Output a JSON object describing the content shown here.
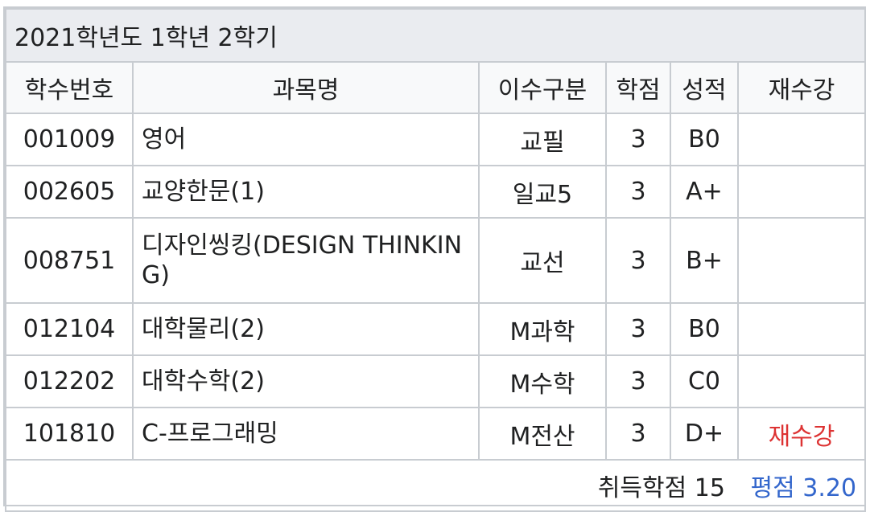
{
  "title": "2021학년도 1학년 2학기",
  "columns": [
    "학수번호",
    "과목명",
    "이수구분",
    "학점",
    "성적",
    "재수강"
  ],
  "rows": [
    {
      "code": "001009",
      "name": "영어",
      "category": "교필",
      "credits": "3",
      "grade": "B0",
      "retake": ""
    },
    {
      "code": "002605",
      "name": "교양한문(1)",
      "category": "일교5",
      "credits": "3",
      "grade": "A+",
      "retake": ""
    },
    {
      "code": "008751",
      "name": "디자인씽킹(DESIGN THINKING)",
      "category": "교선",
      "credits": "3",
      "grade": "B+",
      "retake": ""
    },
    {
      "code": "012104",
      "name": "대학물리(2)",
      "category": "M과학",
      "credits": "3",
      "grade": "B0",
      "retake": ""
    },
    {
      "code": "012202",
      "name": "대학수학(2)",
      "category": "M수학",
      "credits": "3",
      "grade": "C0",
      "retake": ""
    },
    {
      "code": "101810",
      "name": "C-프로그래밍",
      "category": "M전산",
      "credits": "3",
      "grade": "D+",
      "retake": "재수강"
    }
  ],
  "summary": {
    "earned_credits": "취득학점 15",
    "gpa": "평점 3.20"
  },
  "colors": {
    "retake": "#dd3333",
    "gpa": "#3366cc",
    "title_bg": "#eaecf0",
    "header_bg": "#f8f9fa",
    "border": "#c8ccd1"
  }
}
